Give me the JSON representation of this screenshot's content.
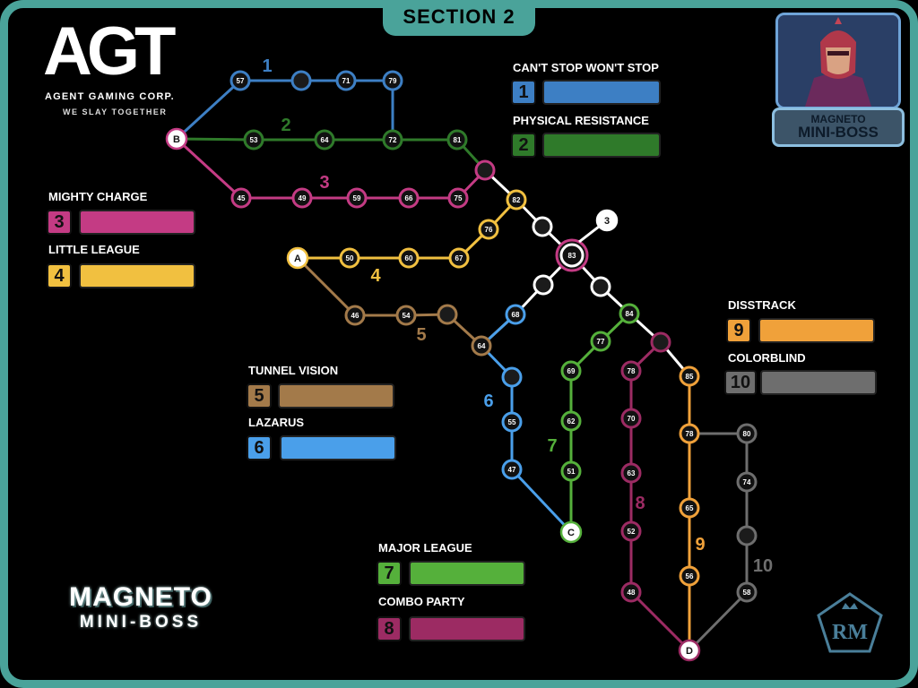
{
  "section": "SECTION 2",
  "logo": {
    "word": "AGT",
    "corp": "AGENT GAMING CORP.",
    "tagline": "WE SLAY TOGETHER"
  },
  "boss": {
    "line1": "MAGNETO",
    "line2": "MINI-BOSS"
  },
  "title": {
    "line1": "MAGNETO",
    "line2": "MINI-BOSS"
  },
  "badge": "RM",
  "colors": {
    "frame": "#4aa39a",
    "path1": "#3d7fc4",
    "path2": "#2f7a2a",
    "path3": "#c43b84",
    "path4": "#f1c040",
    "path5": "#a37a4a",
    "path6": "#4a9fea",
    "path7": "#55b03b",
    "path8": "#9c2b63",
    "path9": "#f0a13a",
    "path10": "#6e6e6e",
    "shared": "#ffffff"
  },
  "legend": [
    {
      "num": "1",
      "name": "CAN'T STOP WON'T STOP",
      "color": "#3d7fc4"
    },
    {
      "num": "2",
      "name": "PHYSICAL RESISTANCE",
      "color": "#2f7a2a"
    },
    {
      "num": "3",
      "name": "MIGHTY CHARGE",
      "color": "#c43b84"
    },
    {
      "num": "4",
      "name": "LITTLE LEAGUE",
      "color": "#f1c040"
    },
    {
      "num": "5",
      "name": "TUNNEL VISION",
      "color": "#a37a4a"
    },
    {
      "num": "6",
      "name": "LAZARUS",
      "color": "#4a9fea"
    },
    {
      "num": "7",
      "name": "MAJOR LEAGUE",
      "color": "#55b03b"
    },
    {
      "num": "8",
      "name": "COMBO PARTY",
      "color": "#9c2b63"
    },
    {
      "num": "9",
      "name": "DISSTRACK",
      "color": "#f0a13a"
    },
    {
      "num": "10",
      "name": "COLORBLIND",
      "color": "#6e6e6e"
    }
  ],
  "path_labels": [
    "1",
    "2",
    "3",
    "4",
    "5",
    "6",
    "7",
    "8",
    "9",
    "10"
  ],
  "start_labels": [
    "A",
    "B",
    "C",
    "D",
    "3"
  ],
  "node_labels": {
    "p1": [
      "57",
      "71",
      "79"
    ],
    "p2": [
      "53",
      "64",
      "72",
      "81"
    ],
    "p3": [
      "45",
      "49",
      "59",
      "66",
      "75"
    ],
    "p4": [
      "50",
      "60",
      "67",
      "76",
      "82"
    ],
    "p5": [
      "46",
      "54",
      "64"
    ],
    "p6": [
      "68",
      "55",
      "47"
    ],
    "p7": [
      "84",
      "77",
      "69",
      "62",
      "51"
    ],
    "p8": [
      "78",
      "70",
      "63",
      "52",
      "48"
    ],
    "p9": [
      "85",
      "78",
      "65",
      "56"
    ],
    "p10": [
      "80",
      "74",
      "58"
    ],
    "boss": "83"
  }
}
